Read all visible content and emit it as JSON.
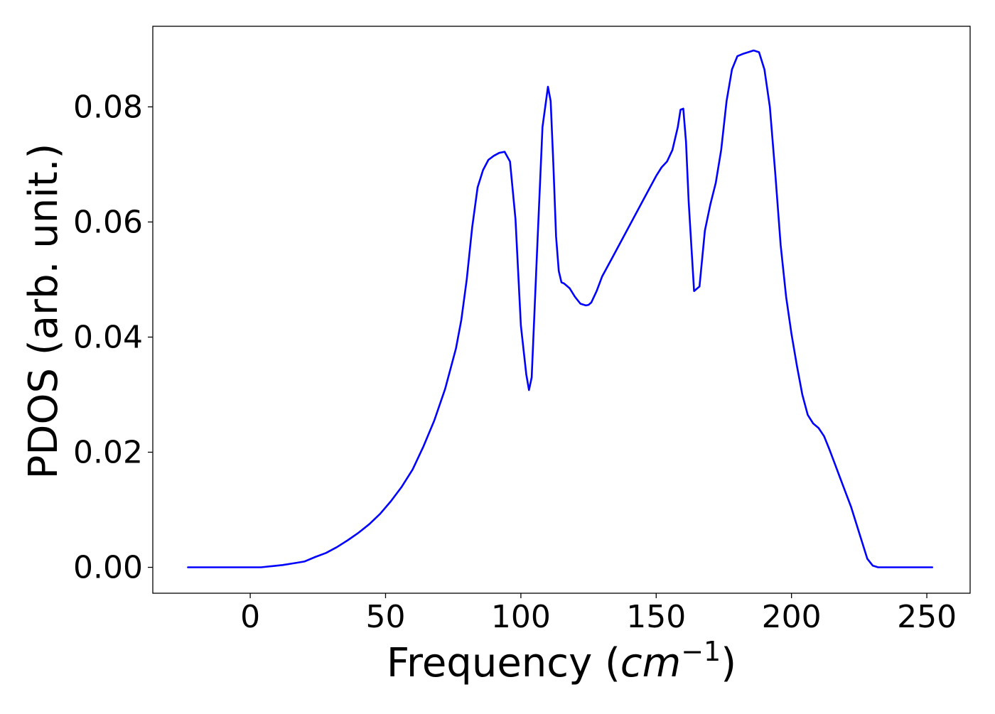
{
  "chart_data": {
    "type": "line",
    "title": "",
    "xlabel": "Frequency (",
    "xlabel_math": {
      "base": "cm",
      "exponent": "−1"
    },
    "xlabel_suffix": ")",
    "ylabel": "PDOS (arb. unit.)",
    "xlim": [
      -36,
      266
    ],
    "ylim": [
      -0.0045,
      0.094
    ],
    "xticks": [
      0,
      50,
      100,
      150,
      200,
      250
    ],
    "xtick_labels": [
      "0",
      "50",
      "100",
      "150",
      "200",
      "250"
    ],
    "yticks": [
      0.0,
      0.02,
      0.04,
      0.06,
      0.08
    ],
    "ytick_labels": [
      "0.00",
      "0.02",
      "0.04",
      "0.06",
      "0.08"
    ],
    "grid": false,
    "legend": "none",
    "colors": {
      "line": "#0000ff",
      "axes": "#000000",
      "background": "#ffffff"
    },
    "series": [
      {
        "x": [
          -23,
          -10,
          0,
          4,
          8,
          12,
          16,
          20,
          24,
          28,
          32,
          36,
          40,
          44,
          48,
          52,
          56,
          60,
          64,
          68,
          72,
          76,
          78,
          80,
          82,
          84,
          86,
          88,
          90,
          92,
          94,
          96,
          98,
          100,
          102,
          103,
          104,
          106,
          108,
          110,
          111,
          112,
          113,
          114,
          115,
          116,
          118,
          120,
          122,
          124,
          125,
          126,
          128,
          130,
          134,
          138,
          142,
          146,
          150,
          152,
          154,
          156,
          158,
          159,
          160,
          161,
          162,
          164,
          166,
          168,
          170,
          172,
          174,
          176,
          178,
          180,
          182,
          184,
          186,
          188,
          190,
          192,
          194,
          196,
          198,
          200,
          202,
          204,
          206,
          208,
          210,
          212,
          214,
          216,
          218,
          220,
          222,
          224,
          226,
          228,
          230,
          232,
          234,
          240,
          252
        ],
        "y": [
          0.0,
          0.0,
          0.0,
          0.0,
          0.0002,
          0.0004,
          0.0007,
          0.001,
          0.0018,
          0.0025,
          0.0035,
          0.0047,
          0.006,
          0.0075,
          0.0093,
          0.0115,
          0.014,
          0.017,
          0.021,
          0.0255,
          0.031,
          0.038,
          0.043,
          0.05,
          0.059,
          0.066,
          0.069,
          0.0708,
          0.0715,
          0.072,
          0.0722,
          0.0705,
          0.0605,
          0.042,
          0.0335,
          0.0308,
          0.033,
          0.055,
          0.0765,
          0.0835,
          0.081,
          0.07,
          0.0575,
          0.0515,
          0.0495,
          0.0493,
          0.0485,
          0.047,
          0.0458,
          0.0455,
          0.0456,
          0.046,
          0.048,
          0.0505,
          0.054,
          0.0575,
          0.061,
          0.0645,
          0.068,
          0.0695,
          0.0705,
          0.0725,
          0.0765,
          0.0795,
          0.0797,
          0.074,
          0.0635,
          0.048,
          0.0488,
          0.0585,
          0.063,
          0.0668,
          0.0725,
          0.081,
          0.0865,
          0.0888,
          0.0892,
          0.0895,
          0.0898,
          0.0895,
          0.0865,
          0.08,
          0.0685,
          0.056,
          0.047,
          0.0405,
          0.035,
          0.03,
          0.0265,
          0.025,
          0.0242,
          0.0228,
          0.0205,
          0.018,
          0.0155,
          0.013,
          0.0105,
          0.0075,
          0.0045,
          0.0015,
          0.0003,
          0.0,
          0.0,
          0.0,
          0.0
        ]
      }
    ]
  }
}
